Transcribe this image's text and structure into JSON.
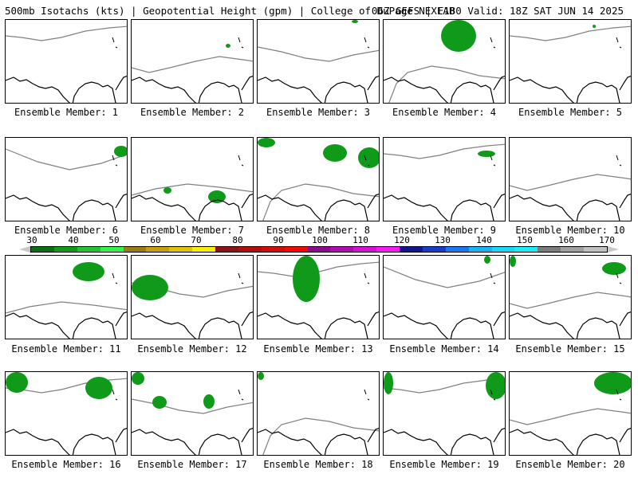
{
  "header": {
    "left": "500mb Isotachs (kts) | Geopotential Height (gpm) | College of DuPage NEXLAB",
    "right": "06Z GEFS | F180 Valid: 18Z SAT JUN 14 2025"
  },
  "colorbar": {
    "ticks": [
      "30",
      "40",
      "50",
      "60",
      "70",
      "80",
      "90",
      "100",
      "110",
      "120",
      "130",
      "140",
      "150",
      "160",
      "170"
    ],
    "colors": [
      "#0a6e14",
      "#0f9a1a",
      "#22c436",
      "#34f24a",
      "#9c7c14",
      "#c2a010",
      "#dcc40c",
      "#f5ee08",
      "#8c1414",
      "#b01010",
      "#d40c0c",
      "#f50808",
      "#8c0c8c",
      "#b00cb0",
      "#d412d4",
      "#f51af5",
      "#14148c",
      "#1a3cc8",
      "#1a78f0",
      "#1ab4f5",
      "#1ad8f5",
      "#1aeef5",
      "#7c7c7c",
      "#a0a0a0",
      "#c0c0c0"
    ]
  },
  "panels": [
    {
      "label": "Ensemble Member: 1"
    },
    {
      "label": "Ensemble Member: 2"
    },
    {
      "label": "Ensemble Member: 3"
    },
    {
      "label": "Ensemble Member: 4"
    },
    {
      "label": "Ensemble Member: 5"
    },
    {
      "label": "Ensemble Member: 6"
    },
    {
      "label": "Ensemble Member: 7"
    },
    {
      "label": "Ensemble Member: 8"
    },
    {
      "label": "Ensemble Member: 9"
    },
    {
      "label": "Ensemble Member: 10"
    },
    {
      "label": "Ensemble Member: 11"
    },
    {
      "label": "Ensemble Member: 12"
    },
    {
      "label": "Ensemble Member: 13"
    },
    {
      "label": "Ensemble Member: 14"
    },
    {
      "label": "Ensemble Member: 15"
    },
    {
      "label": "Ensemble Member: 16"
    },
    {
      "label": "Ensemble Member: 17"
    },
    {
      "label": "Ensemble Member: 18"
    },
    {
      "label": "Ensemble Member: 19"
    },
    {
      "label": "Ensemble Member: 20"
    }
  ],
  "map_colors": {
    "coast": "#000000",
    "height_contour": "#808080",
    "isotach_low": "#0f9a1a",
    "isotach_mid": "#22c436"
  }
}
